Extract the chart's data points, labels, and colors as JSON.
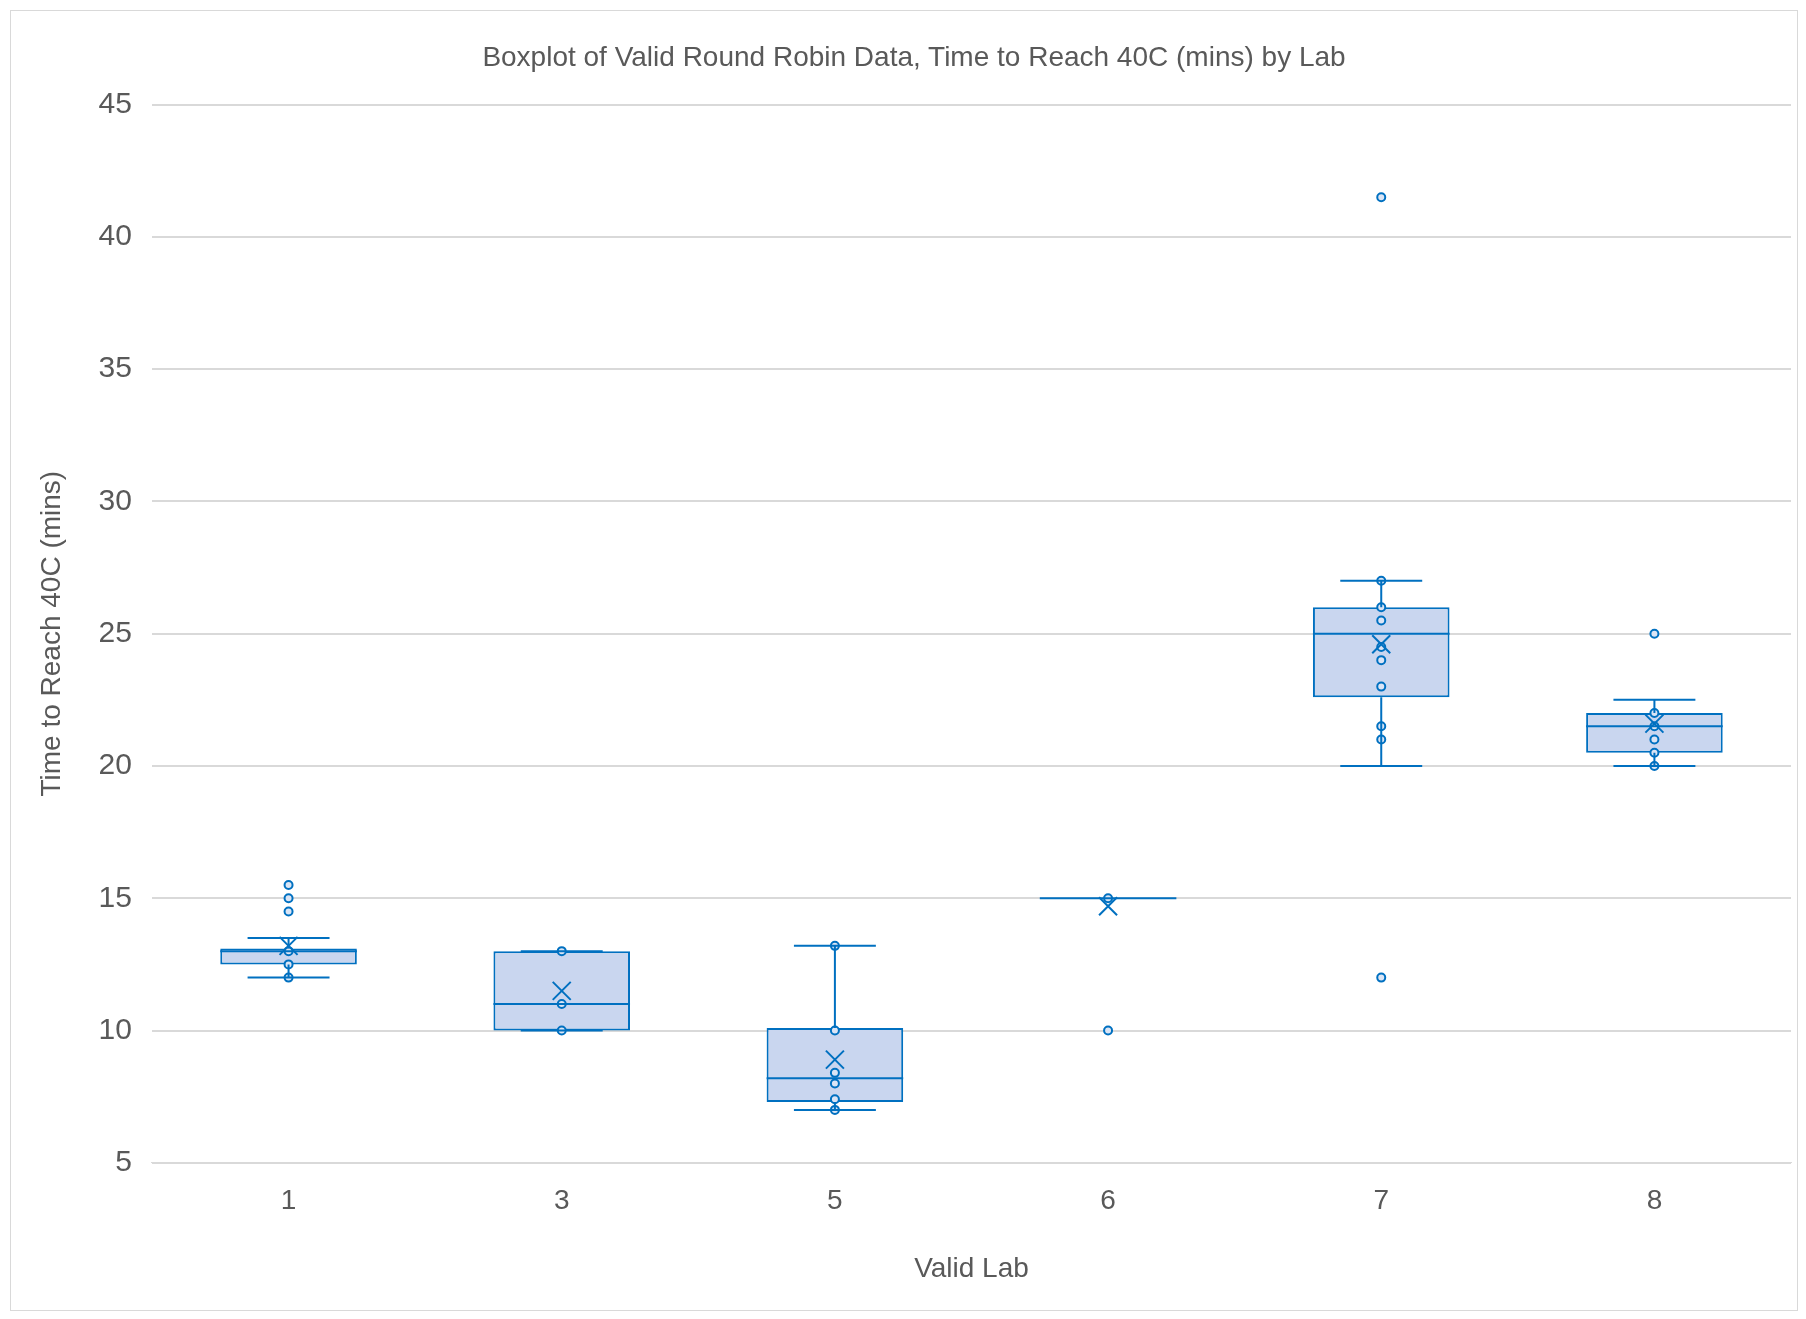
{
  "chart_data": {
    "type": "box",
    "title": "Boxplot of Valid Round Robin Data, Time to Reach 40C (mins) by Lab",
    "xlabel": "Valid Lab",
    "ylabel": "Time to Reach 40C (mins)",
    "categories": [
      "1",
      "3",
      "5",
      "6",
      "7",
      "8"
    ],
    "series": [
      {
        "type": "box",
        "color": "#0070c0",
        "boxes": [
          {
            "low": 12,
            "q1": 12.5,
            "median": 13,
            "q3": 13.1,
            "high": 13.5,
            "mean": 13.2,
            "outliers": [
              14.5,
              15,
              15.5
            ]
          },
          {
            "low": 10,
            "q1": 10,
            "median": 11,
            "q3": 13,
            "high": 13,
            "mean": 11.5
          },
          {
            "low": 7,
            "q1": 7.3,
            "median": 8.2,
            "q3": 10.1,
            "high": 13.2,
            "mean": 8.9
          },
          {
            "low": 15,
            "q1": 15,
            "median": 15,
            "q3": 15,
            "high": 15,
            "mean": 14.7,
            "outliers": [
              10
            ]
          },
          {
            "low": 20,
            "q1": 22.6,
            "median": 25,
            "q3": 26,
            "high": 27,
            "mean": 24.6,
            "outliers": [
              41.5,
              12
            ]
          },
          {
            "low": 20,
            "q1": 20.5,
            "median": 21.5,
            "q3": 22,
            "high": 22.5,
            "mean": 21.6,
            "outliers": [
              25
            ]
          }
        ]
      },
      {
        "type": "scatter",
        "color": "#0070c0",
        "x": [
          "1",
          "1",
          "1",
          "3",
          "3",
          "3",
          "5",
          "5",
          "5",
          "5",
          "5",
          "5",
          "6",
          "7",
          "7",
          "7",
          "7",
          "7",
          "7",
          "7",
          "7",
          "8",
          "8",
          "8",
          "8",
          "8"
        ],
        "values": [
          12,
          12.5,
          13,
          10,
          11,
          13,
          7,
          7.4,
          8,
          8.4,
          10,
          13.2,
          15,
          21,
          21.5,
          23,
          24,
          24.5,
          25.5,
          26,
          27,
          20,
          20.5,
          21,
          21.5,
          22
        ]
      }
    ],
    "ylim": [
      5,
      45
    ],
    "yticks": [
      5,
      10,
      15,
      20,
      25,
      30,
      35,
      40,
      45
    ],
    "grid": "y",
    "legend": false
  }
}
